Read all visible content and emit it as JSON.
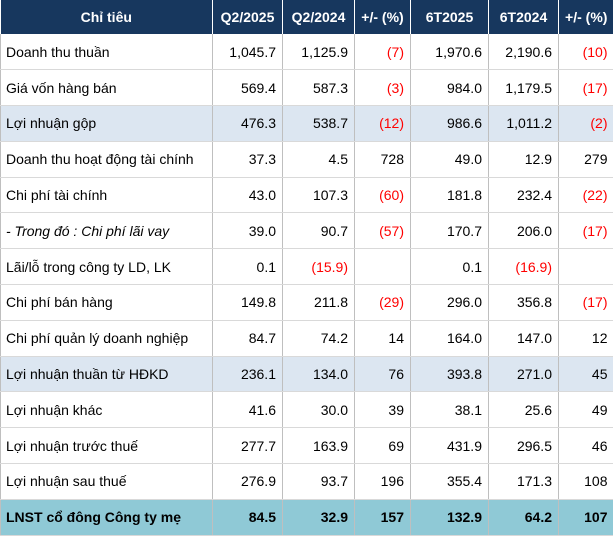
{
  "header": [
    "Chỉ tiêu",
    "Q2/2025",
    "Q2/2024",
    "+/- (%)",
    "6T2025",
    "6T2024",
    "+/- (%)"
  ],
  "rows": [
    {
      "label": "Doanh thu thuần",
      "q2_2025": "1,045.7",
      "q2_2024": "1,125.9",
      "q_chg": "(7)",
      "h1_2025": "1,970.6",
      "h1_2024": "2,190.6",
      "h_chg": "(10)",
      "style": "normal"
    },
    {
      "label": "Giá vốn hàng bán",
      "q2_2025": "569.4",
      "q2_2024": "587.3",
      "q_chg": "(3)",
      "h1_2025": "984.0",
      "h1_2024": "1,179.5",
      "h_chg": "(17)",
      "style": "normal"
    },
    {
      "label": "Lợi nhuận gộp",
      "q2_2025": "476.3",
      "q2_2024": "538.7",
      "q_chg": "(12)",
      "h1_2025": "986.6",
      "h1_2024": "1,011.2",
      "h_chg": "(2)",
      "style": "shade"
    },
    {
      "label": "Doanh thu hoạt động tài chính",
      "q2_2025": "37.3",
      "q2_2024": "4.5",
      "q_chg": "728",
      "h1_2025": "49.0",
      "h1_2024": "12.9",
      "h_chg": "279",
      "style": "normal"
    },
    {
      "label": "Chi phí tài chính",
      "q2_2025": "43.0",
      "q2_2024": "107.3",
      "q_chg": "(60)",
      "h1_2025": "181.8",
      "h1_2024": "232.4",
      "h_chg": "(22)",
      "style": "normal"
    },
    {
      "label": "- Trong đó : Chi phí lãi vay",
      "q2_2025": "39.0",
      "q2_2024": "90.7",
      "q_chg": "(57)",
      "h1_2025": "170.7",
      "h1_2024": "206.0",
      "h_chg": "(17)",
      "style": "italic"
    },
    {
      "label": "Lãi/lỗ trong công ty LD, LK",
      "q2_2025": "0.1",
      "q2_2024": "(15.9)",
      "q_chg": "",
      "h1_2025": "0.1",
      "h1_2024": "(16.9)",
      "h_chg": "",
      "style": "normal"
    },
    {
      "label": "Chi phí bán hàng",
      "q2_2025": "149.8",
      "q2_2024": "211.8",
      "q_chg": "(29)",
      "h1_2025": "296.0",
      "h1_2024": "356.8",
      "h_chg": "(17)",
      "style": "normal"
    },
    {
      "label": "Chi phí quản lý doanh nghiệp",
      "q2_2025": "84.7",
      "q2_2024": "74.2",
      "q_chg": "14",
      "h1_2025": "164.0",
      "h1_2024": "147.0",
      "h_chg": "12",
      "style": "normal"
    },
    {
      "label": "Lợi nhuận thuần từ HĐKD",
      "q2_2025": "236.1",
      "q2_2024": "134.0",
      "q_chg": "76",
      "h1_2025": "393.8",
      "h1_2024": "271.0",
      "h_chg": "45",
      "style": "shade"
    },
    {
      "label": "Lợi nhuận khác",
      "q2_2025": "41.6",
      "q2_2024": "30.0",
      "q_chg": "39",
      "h1_2025": "38.1",
      "h1_2024": "25.6",
      "h_chg": "49",
      "style": "normal"
    },
    {
      "label": "Lợi nhuận trước thuế",
      "q2_2025": "277.7",
      "q2_2024": "163.9",
      "q_chg": "69",
      "h1_2025": "431.9",
      "h1_2024": "296.5",
      "h_chg": "46",
      "style": "normal"
    },
    {
      "label": "Lợi nhuận sau thuế",
      "q2_2025": "276.9",
      "q2_2024": "93.7",
      "q_chg": "196",
      "h1_2025": "355.4",
      "h1_2024": "171.3",
      "h_chg": "108",
      "style": "normal"
    },
    {
      "label": "LNST cổ đông Công ty mẹ",
      "q2_2025": "84.5",
      "q2_2024": "32.9",
      "q_chg": "157",
      "h1_2025": "132.9",
      "h1_2024": "64.2",
      "h_chg": "107",
      "style": "total"
    }
  ],
  "colors": {
    "header_bg": "#17375e",
    "header_text": "#ffffff",
    "shade_bg": "#dce6f1",
    "total_bg": "#8fc9d6",
    "negative_text": "#ff0000"
  }
}
